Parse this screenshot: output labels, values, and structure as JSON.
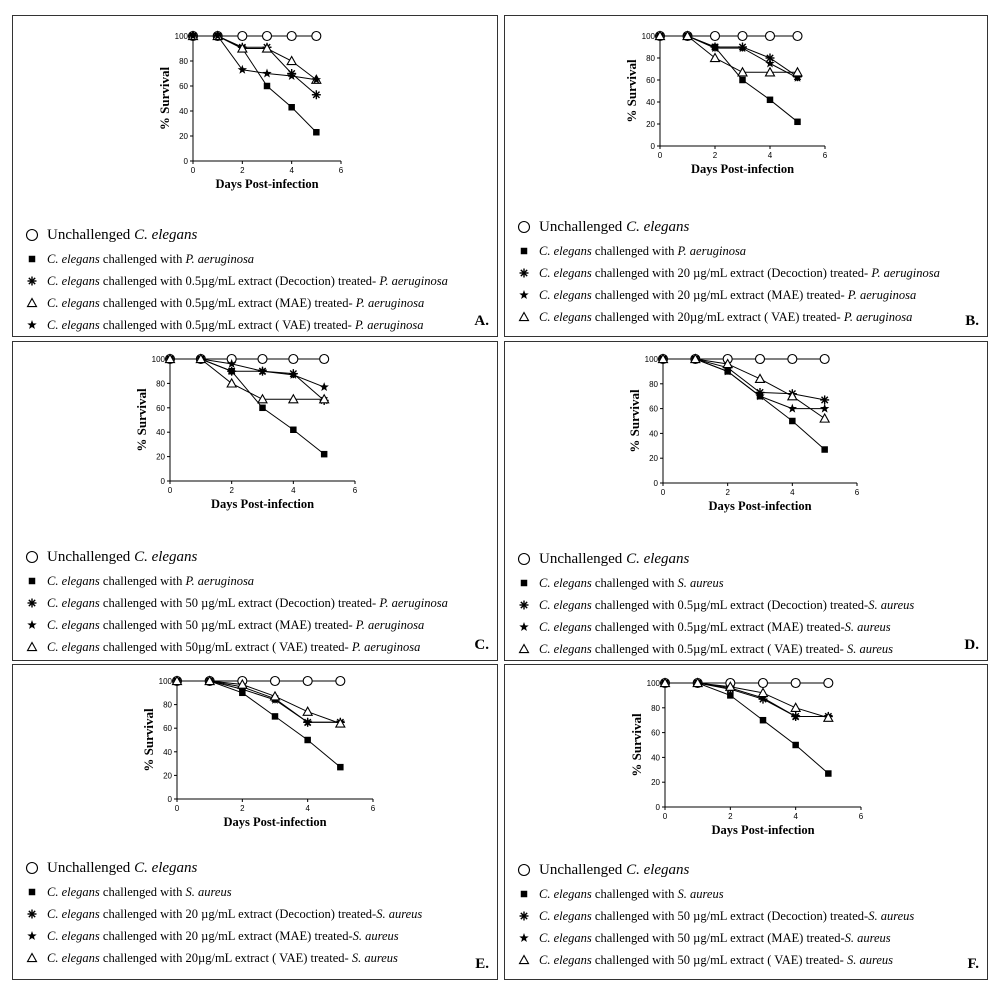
{
  "chart_data": [
    {
      "panel_label": "A.",
      "type": "line",
      "xlabel": "Days Post-infection",
      "ylabel": "% Survival",
      "xlim": [
        0,
        6
      ],
      "ylim": [
        0,
        100
      ],
      "xticks": [
        "0",
        "2",
        "4",
        "6"
      ],
      "yticks": [
        "0",
        "20",
        "40",
        "60",
        "80",
        "100"
      ],
      "x": [
        0,
        1,
        2,
        3,
        4,
        5
      ],
      "series": [
        {
          "marker": "open-circle",
          "values": [
            100,
            100,
            100,
            100,
            100,
            100
          ]
        },
        {
          "marker": "filled-square",
          "values": [
            100,
            100,
            90,
            60,
            43,
            23
          ]
        },
        {
          "marker": "asterisk",
          "values": [
            100,
            100,
            91,
            91,
            70,
            53
          ]
        },
        {
          "marker": "open-triangle",
          "values": [
            100,
            100,
            90,
            90,
            80,
            65
          ]
        },
        {
          "marker": "filled-star",
          "values": [
            100,
            100,
            73,
            70,
            68,
            65
          ]
        }
      ],
      "legend": [
        {
          "pre": "Unchallenged ",
          "italic": "C. elegans",
          "mid": "",
          "italic2": ""
        },
        {
          "pre": "",
          "italic": "C. elegans",
          "mid": " challenged with ",
          "italic2": "P. aeruginosa"
        },
        {
          "pre": "",
          "italic": "C. elegans",
          "mid": " challenged with 0.5µg/mL extract (Decoction) treated- ",
          "italic2": "P. aeruginosa"
        },
        {
          "pre": "",
          "italic": "C. elegans",
          "mid": " challenged with 0.5µg/mL extract (MAE) treated- ",
          "italic2": "P. aeruginosa"
        },
        {
          "pre": "",
          "italic": "C. elegans",
          "mid": " challenged with 0.5µg/mL extract ( VAE) treated- ",
          "italic2": "P. aeruginosa"
        }
      ]
    },
    {
      "panel_label": "B.",
      "type": "line",
      "xlabel": "Days Post-infection",
      "ylabel": "% Survival",
      "xlim": [
        0,
        6
      ],
      "ylim": [
        0,
        100
      ],
      "xticks": [
        "0",
        "2",
        "4",
        "6"
      ],
      "yticks": [
        "0",
        "20",
        "40",
        "60",
        "80",
        "100"
      ],
      "x": [
        0,
        1,
        2,
        3,
        4,
        5
      ],
      "series": [
        {
          "marker": "open-circle",
          "values": [
            100,
            100,
            100,
            100,
            100,
            100
          ]
        },
        {
          "marker": "filled-square",
          "values": [
            100,
            100,
            90,
            60,
            42,
            22
          ]
        },
        {
          "marker": "asterisk",
          "values": [
            100,
            100,
            90,
            90,
            80,
            63
          ]
        },
        {
          "marker": "filled-star",
          "values": [
            100,
            100,
            89,
            89,
            75,
            62
          ]
        },
        {
          "marker": "open-triangle",
          "values": [
            100,
            100,
            80,
            67,
            67,
            67
          ]
        }
      ],
      "legend": [
        {
          "pre": "Unchallenged ",
          "italic": "C. elegans",
          "mid": "",
          "italic2": ""
        },
        {
          "pre": "",
          "italic": "C. elegans",
          "mid": " challenged with ",
          "italic2": "P. aeruginosa"
        },
        {
          "pre": "",
          "italic": "C. elegans",
          "mid": " challenged with 20 µg/mL extract (Decoction) treated- ",
          "italic2": "P. aeruginosa"
        },
        {
          "pre": "",
          "italic": "C. elegans",
          "mid": " challenged with 20 µg/mL extract (MAE) treated- ",
          "italic2": "P. aeruginosa"
        },
        {
          "pre": "",
          "italic": "C. elegans",
          "mid": " challenged with  20µg/mL extract ( VAE) treated- ",
          "italic2": "P. aeruginosa"
        }
      ]
    },
    {
      "panel_label": "C.",
      "type": "line",
      "xlabel": "Days Post-infection",
      "ylabel": "% Survival",
      "xlim": [
        0,
        6
      ],
      "ylim": [
        0,
        100
      ],
      "xticks": [
        "0",
        "2",
        "4",
        "6"
      ],
      "yticks": [
        "0",
        "20",
        "40",
        "60",
        "80",
        "100"
      ],
      "x": [
        0,
        1,
        2,
        3,
        4,
        5
      ],
      "series": [
        {
          "marker": "open-circle",
          "values": [
            100,
            100,
            100,
            100,
            100,
            100
          ]
        },
        {
          "marker": "filled-square",
          "values": [
            100,
            100,
            90,
            60,
            42,
            22
          ]
        },
        {
          "marker": "asterisk",
          "values": [
            100,
            100,
            90,
            90,
            88,
            66
          ]
        },
        {
          "marker": "filled-star",
          "values": [
            100,
            100,
            96,
            90,
            87,
            77
          ]
        },
        {
          "marker": "open-triangle",
          "values": [
            100,
            100,
            80,
            67,
            67,
            67
          ]
        }
      ],
      "legend": [
        {
          "pre": "Unchallenged ",
          "italic": "C. elegans",
          "mid": "",
          "italic2": ""
        },
        {
          "pre": "",
          "italic": "C. elegans",
          "mid": " challenged with ",
          "italic2": "P. aeruginosa"
        },
        {
          "pre": "",
          "italic": "C. elegans",
          "mid": " challenged with 50 µg/mL extract (Decoction) treated- ",
          "italic2": "P. aeruginosa"
        },
        {
          "pre": "",
          "italic": "C. elegans",
          "mid": " challenged with 50 µg/mL extract (MAE) treated- ",
          "italic2": "P. aeruginosa"
        },
        {
          "pre": "",
          "italic": "C. elegans",
          "mid": " challenged with  50µg/mL extract ( VAE) treated- ",
          "italic2": "P. aeruginosa"
        }
      ]
    },
    {
      "panel_label": "D.",
      "type": "line",
      "xlabel": "Days Post-infection",
      "ylabel": "% Survival",
      "xlim": [
        0,
        6
      ],
      "ylim": [
        0,
        100
      ],
      "xticks": [
        "0",
        "2",
        "4",
        "6"
      ],
      "yticks": [
        "0",
        "20",
        "40",
        "60",
        "80",
        "100"
      ],
      "x": [
        0,
        1,
        2,
        3,
        4,
        5
      ],
      "series": [
        {
          "marker": "open-circle",
          "values": [
            100,
            100,
            100,
            100,
            100,
            100
          ]
        },
        {
          "marker": "filled-square",
          "values": [
            100,
            100,
            90,
            70,
            50,
            27
          ]
        },
        {
          "marker": "asterisk",
          "values": [
            100,
            100,
            93,
            73,
            72,
            67
          ]
        },
        {
          "marker": "filled-star",
          "values": [
            100,
            100,
            90,
            70,
            60,
            60
          ]
        },
        {
          "marker": "open-triangle",
          "values": [
            100,
            100,
            96,
            84,
            70,
            52
          ]
        }
      ],
      "legend": [
        {
          "pre": "Unchallenged ",
          "italic": "C. elegans",
          "mid": "",
          "italic2": ""
        },
        {
          "pre": "",
          "italic": "C. elegans",
          "mid": " challenged with ",
          "italic2": "S. aureus"
        },
        {
          "pre": "",
          "italic": "C. elegans",
          "mid": " challenged with 0.5µg/mL extract (Decoction) treated-",
          "italic2": "S. aureus"
        },
        {
          "pre": "",
          "italic": "C. elegans",
          "mid": " challenged with 0.5µg/mL extract (MAE) treated-",
          "italic2": "S. aureus"
        },
        {
          "pre": "",
          "italic": "C. elegans",
          "mid": " challenged with 0.5µg/mL extract ( VAE) treated- ",
          "italic2": "S. aureus"
        }
      ]
    },
    {
      "panel_label": "E.",
      "type": "line",
      "xlabel": "Days Post-infection",
      "ylabel": "% Survival",
      "xlim": [
        0,
        6
      ],
      "ylim": [
        0,
        100
      ],
      "xticks": [
        "0",
        "2",
        "4",
        "6"
      ],
      "yticks": [
        "0",
        "20",
        "40",
        "60",
        "80",
        "100"
      ],
      "x": [
        0,
        1,
        2,
        3,
        4,
        5
      ],
      "series": [
        {
          "marker": "open-circle",
          "values": [
            100,
            100,
            100,
            100,
            100,
            100
          ]
        },
        {
          "marker": "filled-square",
          "values": [
            100,
            100,
            90,
            70,
            50,
            27
          ]
        },
        {
          "marker": "asterisk",
          "values": [
            100,
            100,
            95,
            85,
            65,
            65
          ]
        },
        {
          "marker": "filled-star",
          "values": [
            100,
            100,
            93,
            84,
            65,
            65
          ]
        },
        {
          "marker": "open-triangle",
          "values": [
            100,
            100,
            97,
            87,
            74,
            64
          ]
        }
      ],
      "legend": [
        {
          "pre": "Unchallenged ",
          "italic": "C. elegans",
          "mid": "",
          "italic2": ""
        },
        {
          "pre": "",
          "italic": "C. elegans",
          "mid": " challenged with ",
          "italic2": "S. aureus"
        },
        {
          "pre": "",
          "italic": "C. elegans",
          "mid": " challenged with 20 µg/mL extract (Decoction) treated-",
          "italic2": "S. aureus"
        },
        {
          "pre": "",
          "italic": "C. elegans",
          "mid": " challenged with 20 µg/mL extract (MAE) treated-",
          "italic2": "S. aureus"
        },
        {
          "pre": "",
          "italic": "C. elegans",
          "mid": " challenged with  20µg/mL extract ( VAE) treated- ",
          "italic2": "S. aureus"
        }
      ]
    },
    {
      "panel_label": "F.",
      "type": "line",
      "xlabel": "Days Post-infection",
      "ylabel": "% Survival",
      "xlim": [
        0,
        6
      ],
      "ylim": [
        0,
        100
      ],
      "xticks": [
        "0",
        "2",
        "4",
        "6"
      ],
      "yticks": [
        "0",
        "20",
        "40",
        "60",
        "80",
        "100"
      ],
      "x": [
        0,
        1,
        2,
        3,
        4,
        5
      ],
      "series": [
        {
          "marker": "open-circle",
          "values": [
            100,
            100,
            100,
            100,
            100,
            100
          ]
        },
        {
          "marker": "filled-square",
          "values": [
            100,
            100,
            90,
            70,
            50,
            27
          ]
        },
        {
          "marker": "asterisk",
          "values": [
            100,
            100,
            95,
            87,
            73,
            73
          ]
        },
        {
          "marker": "filled-star",
          "values": [
            100,
            100,
            96,
            88,
            73,
            73
          ]
        },
        {
          "marker": "open-triangle",
          "values": [
            100,
            100,
            97,
            92,
            80,
            72
          ]
        }
      ],
      "legend": [
        {
          "pre": "Unchallenged ",
          "italic": "C. elegans",
          "mid": "",
          "italic2": ""
        },
        {
          "pre": "",
          "italic": "C. elegans",
          "mid": " challenged with ",
          "italic2": "S. aureus"
        },
        {
          "pre": "",
          "italic": "C. elegans",
          "mid": " challenged with 50 µg/mL extract (Decoction) treated-",
          "italic2": "S. aureus"
        },
        {
          "pre": "",
          "italic": "C. elegans",
          "mid": " challenged with 50 µg/mL extract (MAE) treated-",
          "italic2": "S. aureus"
        },
        {
          "pre": "",
          "italic": "C. elegans",
          "mid": " challenged with 50 µg/mL extract ( VAE) treated- ",
          "italic2": "S. aureus"
        }
      ]
    }
  ]
}
